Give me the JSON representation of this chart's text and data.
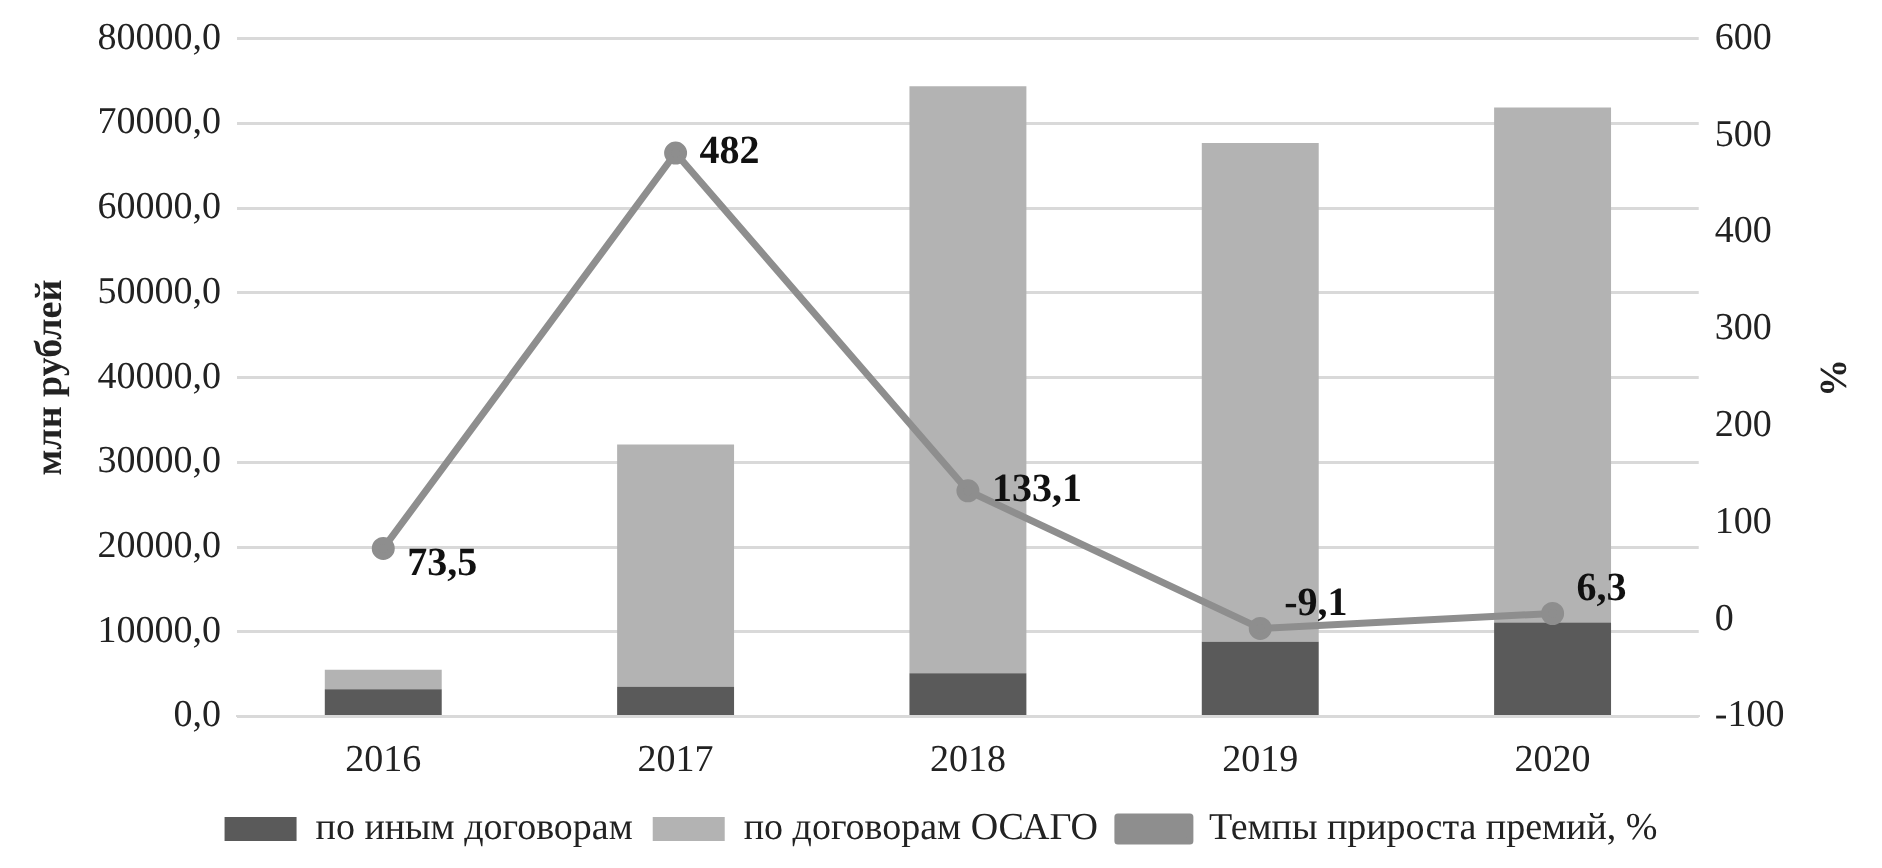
{
  "chart_data": {
    "type": "bar",
    "stacked": true,
    "categories": [
      "2016",
      "2017",
      "2018",
      "2019",
      "2020"
    ],
    "ylabel": "млн рублей",
    "y2label": "%",
    "ylim": [
      0,
      80000
    ],
    "yticks": [
      {
        "value": 0,
        "label": "0,0"
      },
      {
        "value": 10000,
        "label": "10000,0"
      },
      {
        "value": 20000,
        "label": "20000,0"
      },
      {
        "value": 30000,
        "label": "30000,0"
      },
      {
        "value": 40000,
        "label": "40000,0"
      },
      {
        "value": 50000,
        "label": "50000,0"
      },
      {
        "value": 60000,
        "label": "60000,0"
      },
      {
        "value": 70000,
        "label": "70000,0"
      },
      {
        "value": 80000,
        "label": "80000,0"
      }
    ],
    "y2lim": [
      -100,
      600
    ],
    "y2ticks": [
      -100,
      0,
      100,
      200,
      300,
      400,
      500,
      600
    ],
    "grid": "y",
    "legend": "bottom",
    "series": [
      {
        "name": "по иным договорам",
        "color": "#5a5a5a",
        "values": [
          3200,
          3500,
          5100,
          8800,
          11100
        ]
      },
      {
        "name": "по договорам ОСАГО",
        "color": "#b3b3b3",
        "values": [
          2300,
          28600,
          69300,
          58900,
          60800
        ]
      },
      {
        "type": "line",
        "axis": "y2",
        "name": "Темпы прироста премий, %",
        "color": "#8e8e8e",
        "marker": "circle",
        "values": [
          73.5,
          482,
          133.1,
          -9.1,
          6.3
        ],
        "value_labels": [
          "73,5",
          "482",
          "133,1",
          "-9,1",
          "6,3"
        ]
      }
    ]
  }
}
